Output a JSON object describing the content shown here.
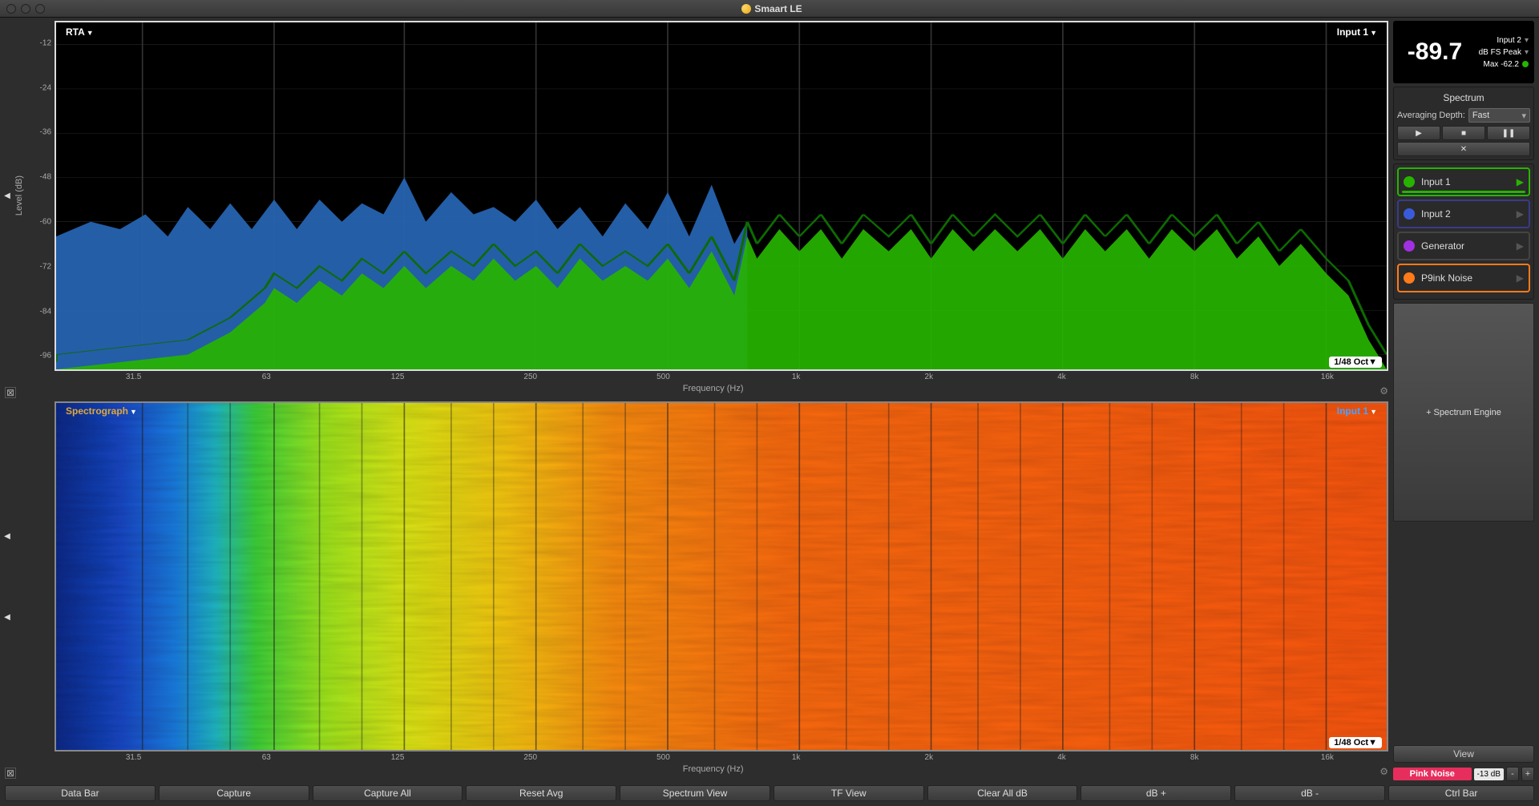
{
  "window": {
    "title": "Smaart LE"
  },
  "rta": {
    "title": "RTA",
    "input_label": "Input 1",
    "resolution": "1/48 Oct▼",
    "ylabel": "Level (dB)",
    "xlabel": "Frequency (Hz)",
    "yticks": [
      -12,
      -24,
      -36,
      -48,
      -60,
      -72,
      -84,
      -96
    ],
    "ylim": [
      -100,
      -6
    ],
    "xticks": [
      31.5,
      63,
      125,
      250,
      500,
      "1k",
      "2k",
      "4k",
      "8k",
      "16k"
    ],
    "xvals": [
      31.5,
      63,
      125,
      250,
      500,
      1000,
      2000,
      4000,
      8000,
      16000
    ],
    "xlim": [
      20,
      22000
    ],
    "grid_color": "#333333",
    "border_color": "#dcdcdc",
    "bg_color": "#000000",
    "series": {
      "input2_fill": "#2663b0",
      "input1_fill": "#27b400",
      "input1_line": "#0d6b00"
    },
    "input2_data": [
      [
        20,
        -64
      ],
      [
        24,
        -60
      ],
      [
        28,
        -62
      ],
      [
        32,
        -58
      ],
      [
        36,
        -64
      ],
      [
        40,
        -56
      ],
      [
        45,
        -62
      ],
      [
        50,
        -55
      ],
      [
        56,
        -62
      ],
      [
        63,
        -54
      ],
      [
        71,
        -62
      ],
      [
        80,
        -54
      ],
      [
        90,
        -60
      ],
      [
        100,
        -55
      ],
      [
        112,
        -58
      ],
      [
        125,
        -48
      ],
      [
        140,
        -60
      ],
      [
        160,
        -52
      ],
      [
        180,
        -58
      ],
      [
        200,
        -56
      ],
      [
        224,
        -60
      ],
      [
        250,
        -54
      ],
      [
        280,
        -62
      ],
      [
        315,
        -56
      ],
      [
        355,
        -64
      ],
      [
        400,
        -55
      ],
      [
        450,
        -62
      ],
      [
        500,
        -52
      ],
      [
        560,
        -64
      ],
      [
        630,
        -50
      ],
      [
        710,
        -66
      ],
      [
        760,
        -60
      ]
    ],
    "input1_data": [
      [
        20,
        -100
      ],
      [
        40,
        -96
      ],
      [
        50,
        -90
      ],
      [
        60,
        -82
      ],
      [
        63,
        -78
      ],
      [
        71,
        -82
      ],
      [
        80,
        -76
      ],
      [
        90,
        -80
      ],
      [
        100,
        -74
      ],
      [
        112,
        -78
      ],
      [
        125,
        -72
      ],
      [
        140,
        -78
      ],
      [
        160,
        -72
      ],
      [
        180,
        -76
      ],
      [
        200,
        -70
      ],
      [
        224,
        -76
      ],
      [
        250,
        -72
      ],
      [
        280,
        -78
      ],
      [
        315,
        -70
      ],
      [
        355,
        -76
      ],
      [
        400,
        -72
      ],
      [
        450,
        -76
      ],
      [
        500,
        -70
      ],
      [
        560,
        -78
      ],
      [
        630,
        -68
      ],
      [
        710,
        -80
      ],
      [
        760,
        -64
      ],
      [
        800,
        -70
      ],
      [
        900,
        -62
      ],
      [
        1000,
        -68
      ],
      [
        1120,
        -62
      ],
      [
        1250,
        -70
      ],
      [
        1400,
        -62
      ],
      [
        1600,
        -68
      ],
      [
        1800,
        -62
      ],
      [
        2000,
        -70
      ],
      [
        2240,
        -62
      ],
      [
        2500,
        -68
      ],
      [
        2800,
        -62
      ],
      [
        3150,
        -68
      ],
      [
        3550,
        -62
      ],
      [
        4000,
        -70
      ],
      [
        4500,
        -62
      ],
      [
        5000,
        -68
      ],
      [
        5600,
        -62
      ],
      [
        6300,
        -70
      ],
      [
        7100,
        -62
      ],
      [
        8000,
        -68
      ],
      [
        9000,
        -62
      ],
      [
        10000,
        -70
      ],
      [
        11200,
        -64
      ],
      [
        12500,
        -72
      ],
      [
        14000,
        -66
      ],
      [
        16000,
        -74
      ],
      [
        18000,
        -80
      ],
      [
        20000,
        -92
      ],
      [
        22000,
        -100
      ]
    ]
  },
  "spectro": {
    "title": "Spectrograph",
    "input_label": "Input 1",
    "resolution": "1/48 Oct▼",
    "xlabel": "Frequency (Hz)",
    "xticks": [
      31.5,
      63,
      125,
      250,
      500,
      "1k",
      "2k",
      "4k",
      "8k",
      "16k"
    ],
    "xvals": [
      31.5,
      63,
      125,
      250,
      500,
      1000,
      2000,
      4000,
      8000,
      16000
    ],
    "xlim": [
      20,
      22000
    ],
    "gradient_stops": [
      [
        0,
        "#0a2a89"
      ],
      [
        5,
        "#1849c7"
      ],
      [
        9,
        "#1b7ee0"
      ],
      [
        12,
        "#1fb6c2"
      ],
      [
        15,
        "#3dd13a"
      ],
      [
        20,
        "#9de61e"
      ],
      [
        26,
        "#d9e615"
      ],
      [
        34,
        "#f5c412"
      ],
      [
        42,
        "#fa8c0e"
      ],
      [
        55,
        "#fa6a0e"
      ],
      [
        100,
        "#f9560d"
      ]
    ],
    "grid_color": "#222222",
    "title_color": "#e0a838",
    "input_color": "#4aa3ff"
  },
  "meter": {
    "value": "-89.7",
    "source": "Input 2",
    "mode": "dB FS Peak",
    "max_label": "Max -62.2",
    "dot_color": "#27b400"
  },
  "spectrum_panel": {
    "title": "Spectrum",
    "avg_label": "Averaging Depth:",
    "avg_value": "Fast"
  },
  "inputs": [
    {
      "label": "Input 1",
      "color": "#27b400",
      "border": "#27b400",
      "active": true
    },
    {
      "label": "Input 2",
      "color": "#3a5bd9",
      "border": "#3a3a8a",
      "active": false
    },
    {
      "label": "Generator",
      "color": "#a030e0",
      "border": "#444444",
      "active": false
    },
    {
      "label": "P9ink Noise",
      "color": "#ff7a1a",
      "border": "#ff7a1a",
      "active": false
    }
  ],
  "add_engine_label": "+ Spectrum Engine",
  "view_label": "View",
  "pink": {
    "label": "Pink Noise",
    "level": "-13 dB"
  },
  "footer": [
    "Data Bar",
    "Capture",
    "Capture All",
    "Reset Avg",
    "Spectrum View",
    "TF View",
    "Clear All dB",
    "dB +",
    "dB -"
  ],
  "footer_right": "Ctrl Bar"
}
